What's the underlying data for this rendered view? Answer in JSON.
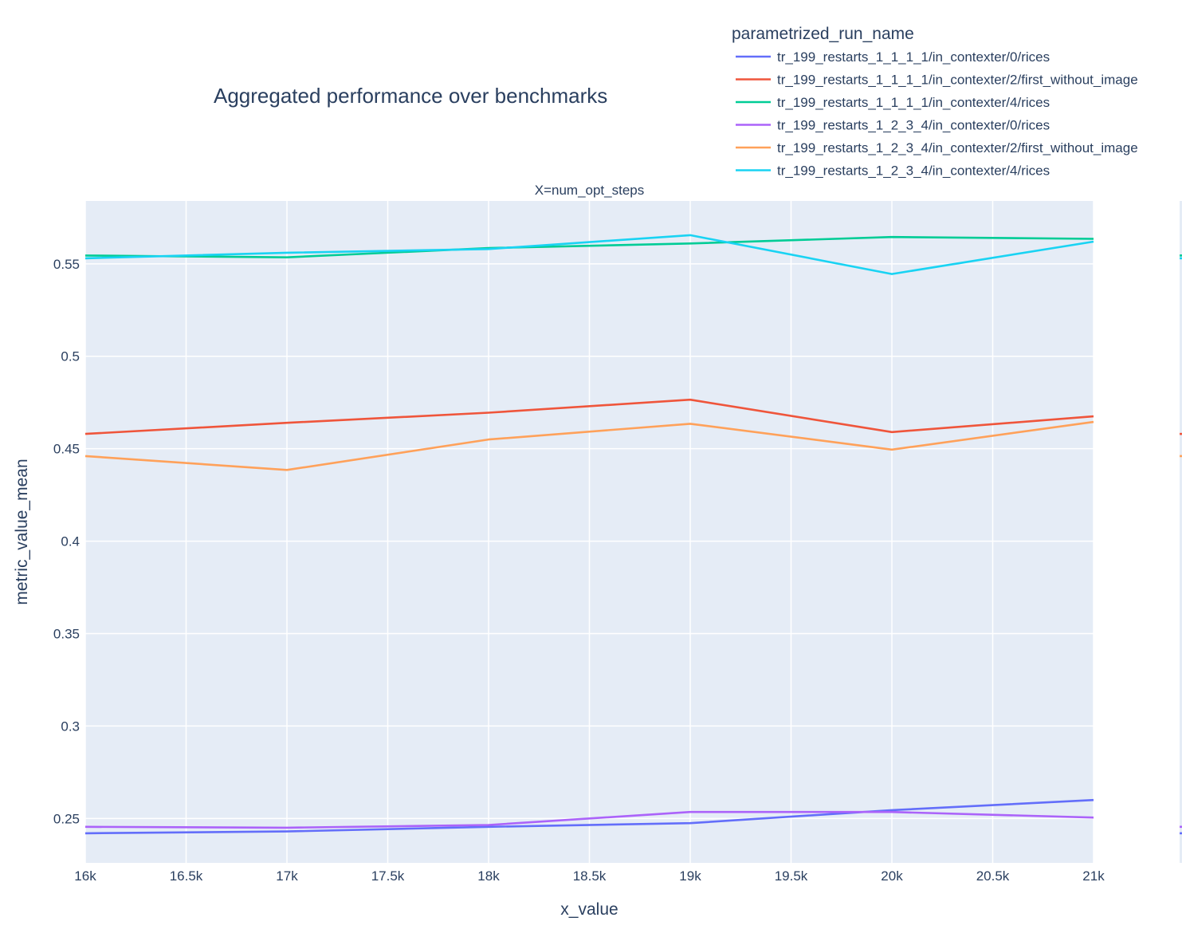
{
  "chart_data": {
    "type": "line",
    "title": "Aggregated performance over benchmarks",
    "subplot_title": "X=num_opt_steps",
    "xlabel": "x_value",
    "ylabel": "metric_value_mean",
    "legend_title": "parametrized_run_name",
    "legend_position": "top-right",
    "grid": true,
    "xlim": [
      16000,
      21000
    ],
    "ylim": [
      0.226,
      0.584
    ],
    "xticks": [
      16000,
      16500,
      17000,
      17500,
      18000,
      18500,
      19000,
      19500,
      20000,
      20500,
      21000
    ],
    "xtick_labels": [
      "16k",
      "16.5k",
      "17k",
      "17.5k",
      "18k",
      "18.5k",
      "19k",
      "19.5k",
      "20k",
      "20.5k",
      "21k"
    ],
    "yticks": [
      0.25,
      0.3,
      0.35,
      0.4,
      0.45,
      0.5,
      0.55
    ],
    "ytick_labels": [
      "0.25",
      "0.3",
      "0.35",
      "0.4",
      "0.45",
      "0.5",
      "0.55"
    ],
    "x": [
      16000,
      17000,
      18000,
      19000,
      20000,
      21000
    ],
    "series": [
      {
        "name": "tr_199_restarts_1_1_1_1/in_contexter/0/rices",
        "color": "#636efa",
        "values": [
          0.242,
          0.243,
          0.2455,
          0.2475,
          0.2545,
          0.26
        ]
      },
      {
        "name": "tr_199_restarts_1_1_1_1/in_contexter/2/first_without_image",
        "color": "#ef553b",
        "values": [
          0.458,
          0.464,
          0.4695,
          0.4765,
          0.459,
          0.4675
        ]
      },
      {
        "name": "tr_199_restarts_1_1_1_1/in_contexter/4/rices",
        "color": "#00cc96",
        "values": [
          0.5545,
          0.5535,
          0.5585,
          0.561,
          0.5645,
          0.5635
        ]
      },
      {
        "name": "tr_199_restarts_1_2_3_4/in_contexter/0/rices",
        "color": "#ab63fa",
        "values": [
          0.2455,
          0.245,
          0.2465,
          0.2535,
          0.2535,
          0.2505
        ]
      },
      {
        "name": "tr_199_restarts_1_2_3_4/in_contexter/2/first_without_image",
        "color": "#ffa15a",
        "values": [
          0.446,
          0.4385,
          0.455,
          0.4635,
          0.4495,
          0.4645
        ]
      },
      {
        "name": "tr_199_restarts_1_2_3_4/in_contexter/4/rices",
        "color": "#19d3f3",
        "values": [
          0.553,
          0.556,
          0.558,
          0.5655,
          0.5445,
          0.562
        ]
      }
    ]
  }
}
